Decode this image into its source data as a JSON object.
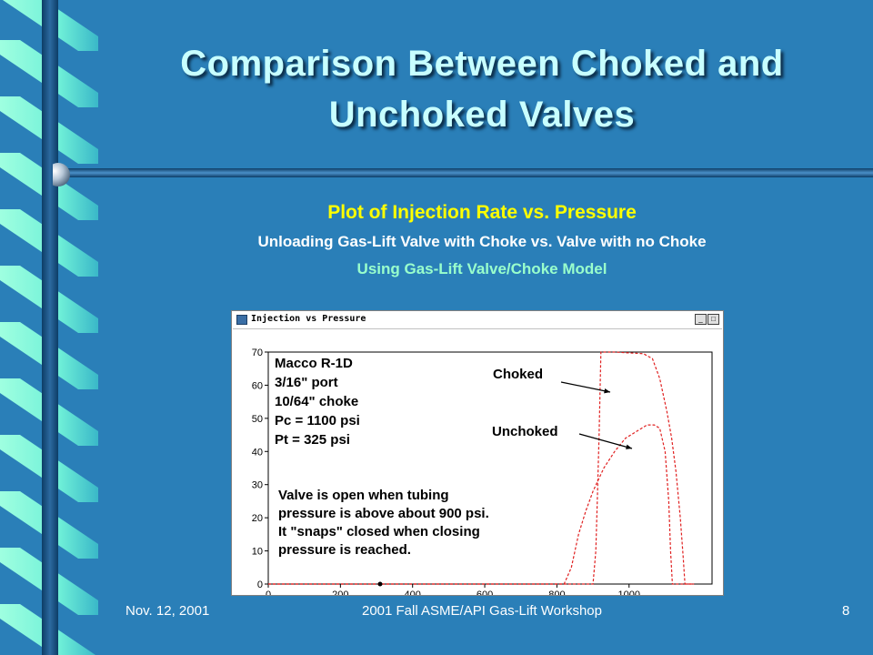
{
  "slide": {
    "title_line_1": "Comparison Between Choked and",
    "title_line_2": "Unchoked Valves",
    "plot_heading": "Plot of Injection Rate vs. Pressure",
    "plot_subtitle": "Unloading Gas-Lift Valve with Choke vs. Valve with no Choke",
    "plot_model": "Using Gas-Lift Valve/Choke Model",
    "colors": {
      "background": "#2a7fb8",
      "title": "#c8ffff",
      "heading": "#ffff00",
      "model": "#99ffcc",
      "curve": "#e02020"
    }
  },
  "window": {
    "title": "Injection vs Pressure",
    "minimize_icon": "minimize-icon",
    "maximize_icon": "maximize-icon"
  },
  "annotations": {
    "spec_lines": [
      "Macco R-1D",
      "3/16\" port",
      "10/64\" choke",
      "Pc = 1100 psi",
      "Pt = 325 psi"
    ],
    "note_lines": [
      "Valve is open when tubing",
      "pressure is above about 900 psi.",
      "It \"snaps\" closed when closing",
      "pressure is reached."
    ],
    "choked_label": "Choked",
    "unchoked_label": "Unchoked"
  },
  "chart_data": {
    "type": "line",
    "x_ticks": [
      0,
      200,
      400,
      600,
      800,
      1000
    ],
    "y_ticks": [
      0,
      10,
      20,
      30,
      40,
      50,
      60,
      70
    ],
    "xlim": [
      0,
      1230
    ],
    "ylim": [
      0,
      70
    ],
    "grid": false,
    "series": [
      {
        "name": "Choked",
        "style": "dashed",
        "points": [
          [
            0,
            0
          ],
          [
            890,
            0
          ],
          [
            900,
            0
          ],
          [
            908,
            10
          ],
          [
            912,
            25
          ],
          [
            917,
            45
          ],
          [
            920,
            60
          ],
          [
            922,
            70
          ],
          [
            960,
            70
          ],
          [
            1040,
            69.5
          ],
          [
            1065,
            68
          ],
          [
            1085,
            62
          ],
          [
            1105,
            52
          ],
          [
            1118,
            44
          ],
          [
            1130,
            34
          ],
          [
            1142,
            20
          ],
          [
            1150,
            8
          ],
          [
            1155,
            0
          ],
          [
            1180,
            0
          ]
        ]
      },
      {
        "name": "Unchoked",
        "style": "dashed",
        "points": [
          [
            0,
            0
          ],
          [
            820,
            0
          ],
          [
            840,
            5
          ],
          [
            860,
            15
          ],
          [
            880,
            22
          ],
          [
            900,
            28
          ],
          [
            930,
            35
          ],
          [
            960,
            40
          ],
          [
            990,
            44
          ],
          [
            1020,
            46
          ],
          [
            1050,
            48
          ],
          [
            1070,
            48
          ],
          [
            1085,
            47
          ],
          [
            1100,
            40
          ],
          [
            1110,
            25
          ],
          [
            1115,
            10
          ],
          [
            1120,
            0
          ],
          [
            1180,
            0
          ]
        ]
      }
    ],
    "marker_point": [
      310,
      0
    ]
  },
  "footer": {
    "date": "Nov. 12, 2001",
    "event": "2001 Fall ASME/API Gas-Lift Workshop",
    "page": "8"
  }
}
